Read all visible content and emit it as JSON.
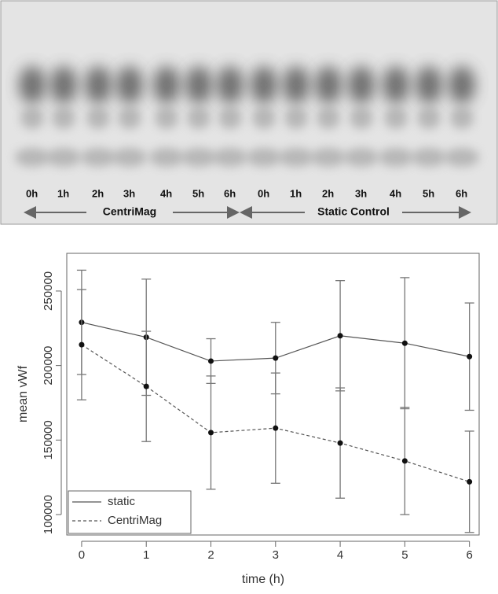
{
  "gel": {
    "lanes": [
      "0h",
      "1h",
      "2h",
      "3h",
      "4h",
      "5h",
      "6h",
      "0h",
      "1h",
      "2h",
      "3h",
      "4h",
      "5h",
      "6h"
    ],
    "groups": [
      "CentriMag",
      "Static Control"
    ]
  },
  "chart_data": {
    "type": "line",
    "x_label": "time (h)",
    "y_label": "mean vWf",
    "x": [
      0,
      1,
      2,
      3,
      4,
      5,
      6
    ],
    "series": [
      {
        "name": "static",
        "color": "#555555",
        "dash": false,
        "values": [
          229000,
          219000,
          203000,
          205000,
          220000,
          215000,
          206000
        ],
        "errors": [
          35000,
          39000,
          15000,
          24000,
          37000,
          44000,
          36000
        ]
      },
      {
        "name": "CentriMag",
        "color": "#555555",
        "dash": true,
        "values": [
          214000,
          186000,
          155000,
          158000,
          148000,
          136000,
          122000
        ],
        "errors": [
          37000,
          37000,
          38000,
          37000,
          37000,
          36000,
          34000
        ]
      }
    ],
    "xlim": [
      -0.23,
      6.15
    ],
    "ylim": [
      86300,
      275300
    ],
    "xticks": [
      0,
      1,
      2,
      3,
      4,
      5,
      6
    ],
    "yticks": [
      100000,
      150000,
      200000,
      250000
    ],
    "grid": false,
    "legend": "bottom-left"
  }
}
